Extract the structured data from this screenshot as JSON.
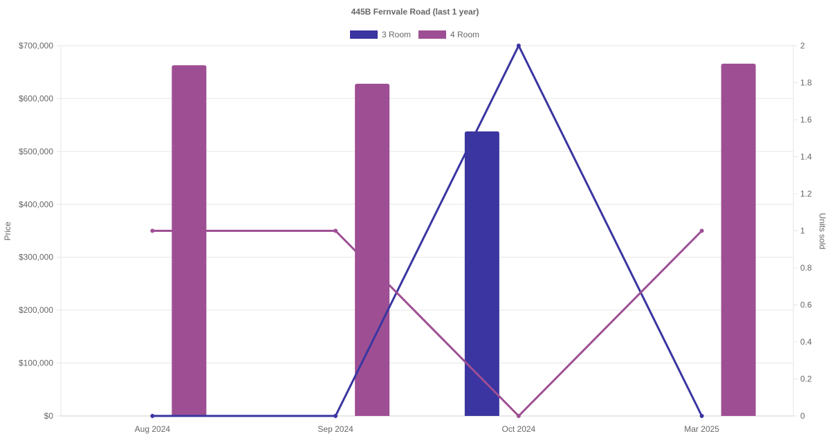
{
  "chart_data": {
    "type": "bar",
    "title": "445B Fernvale Road (last 1 year)",
    "categories": [
      "Aug 2024",
      "Sep 2024",
      "Oct 2024",
      "Mar 2025"
    ],
    "y_left": {
      "label": "Price",
      "min": 0,
      "max": 700000,
      "step": 100000,
      "tick_labels": [
        "$0",
        "$100,000",
        "$200,000",
        "$300,000",
        "$400,000",
        "$500,000",
        "$600,000",
        "$700,000"
      ]
    },
    "y_right": {
      "label": "Units sold",
      "min": 0,
      "max": 2,
      "step": 0.2,
      "tick_labels": [
        "0",
        "0.2",
        "0.4",
        "0.6",
        "0.8",
        "1",
        "1.2",
        "1.4",
        "1.6",
        "1.8",
        "2"
      ]
    },
    "grid": true,
    "legend_position": "top",
    "series": [
      {
        "name": "3 Room",
        "color": "#3a35a0",
        "price": [
          null,
          null,
          538000,
          null
        ],
        "units": [
          0,
          0,
          2,
          0
        ]
      },
      {
        "name": "4 Room",
        "color": "#9e4f94",
        "price": [
          663000,
          628000,
          null,
          666000
        ],
        "units": [
          1,
          1,
          0,
          1
        ]
      }
    ]
  }
}
